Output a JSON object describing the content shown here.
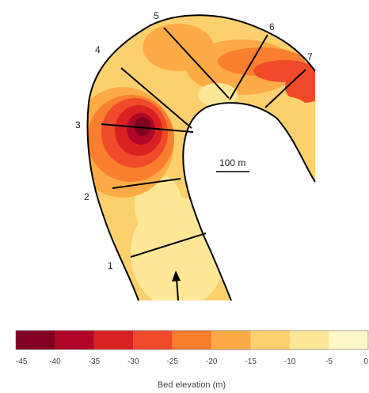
{
  "scale_bar": {
    "label": "100 m"
  },
  "flow_arrow": {
    "icon": "arrow-up-icon"
  },
  "sections": [
    "1",
    "2",
    "3",
    "4",
    "5",
    "6",
    "7"
  ],
  "colorbar": {
    "title": "Bed elevation (m)",
    "tick_labels": [
      "-45",
      "-40",
      "-35",
      "-30",
      "-25",
      "-20",
      "-15",
      "-10",
      "-5",
      "0"
    ],
    "bins": [
      {
        "from": -45,
        "to": -40,
        "color": "#7f0020"
      },
      {
        "from": -40,
        "to": -35,
        "color": "#b00628"
      },
      {
        "from": -35,
        "to": -30,
        "color": "#d92121"
      },
      {
        "from": -30,
        "to": -25,
        "color": "#f14a2a"
      },
      {
        "from": -25,
        "to": -20,
        "color": "#f97f2f"
      },
      {
        "from": -20,
        "to": -15,
        "color": "#fdac45"
      },
      {
        "from": -15,
        "to": -10,
        "color": "#fdd06e"
      },
      {
        "from": -10,
        "to": -5,
        "color": "#fee898"
      },
      {
        "from": -5,
        "to": 0,
        "color": "#fff8c6"
      }
    ]
  },
  "colors": {
    "bank": "#000000",
    "channel_base": "#fdd06e"
  }
}
